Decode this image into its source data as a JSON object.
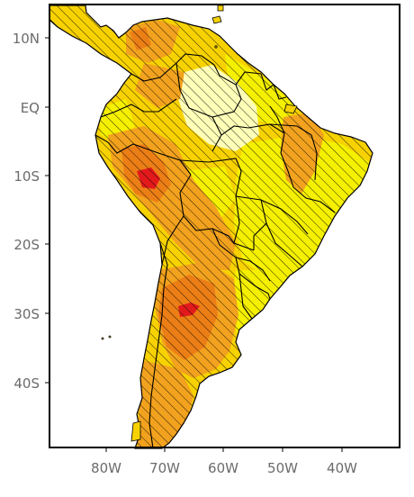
{
  "map": {
    "lat_labels": [
      "10N",
      "EQ",
      "10S",
      "20S",
      "30S",
      "40S"
    ],
    "lon_labels": [
      "80W",
      "70W",
      "60W",
      "50W",
      "40W"
    ],
    "colors": {
      "land_base": "#f7d200",
      "land_light": "#ffffb8",
      "land_yellow": "#f5f000",
      "orange_light": "#f2a21e",
      "orange": "#ec7e16",
      "red": "#e31a1c",
      "hatch": "#000000",
      "frame": "#000000",
      "background": "#ffffff"
    }
  }
}
